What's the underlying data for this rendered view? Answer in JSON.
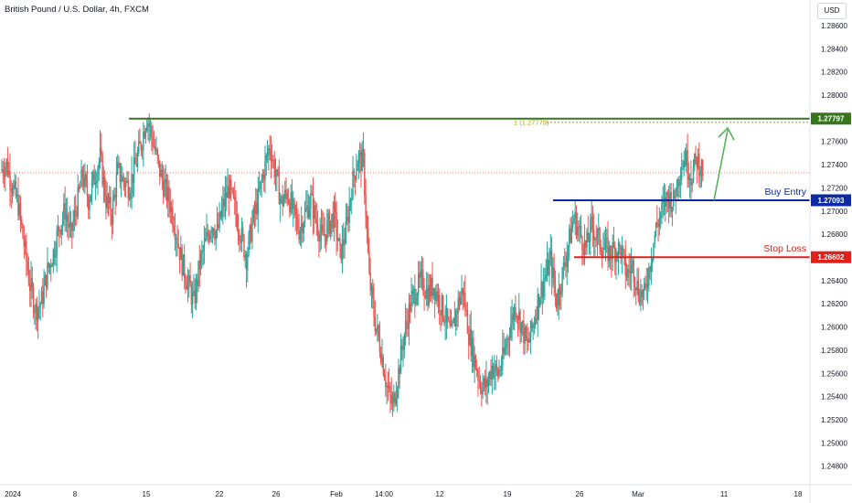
{
  "header": {
    "title": "British Pound / U.S. Dollar, 4h, FXCM",
    "currency": "USD"
  },
  "colors": {
    "up": "#26a69a",
    "down": "#ef5350",
    "target": "#38761d",
    "entry": "#0d2aa6",
    "stop": "#e0201b",
    "target_ghost": "#b8a000",
    "arrow": "#4caf50",
    "last_price": "#ef5350",
    "grid_text": "#131722"
  },
  "chart_data": {
    "type": "candlestick",
    "title": "British Pound / U.S. Dollar, 4h, FXCM",
    "ylim": [
      1.2464,
      1.2882
    ],
    "y_ticks": [
      "1.28600",
      "1.28400",
      "1.28200",
      "1.28000",
      "1.27800",
      "1.27600",
      "1.27400",
      "1.27200",
      "1.27000",
      "1.26800",
      "1.26600",
      "1.26400",
      "1.26200",
      "1.26000",
      "1.25800",
      "1.25600",
      "1.25400",
      "1.25200",
      "1.25000",
      "1.24800"
    ],
    "x_tick_labels": [
      "2024",
      "8",
      "15",
      "22",
      "26",
      "Feb",
      "14:00",
      "12",
      "19",
      "26",
      "Mar",
      "11",
      "18"
    ],
    "grid": false,
    "price_lines": [
      {
        "name": "target",
        "label": "",
        "value": 1.27797,
        "badge": "1.27797"
      },
      {
        "name": "entry",
        "label": "Buy Entry",
        "value": 1.27093,
        "badge": "1.27093"
      },
      {
        "name": "stop",
        "label": "Stop Loss",
        "value": 1.26602,
        "badge": "1.26602"
      }
    ],
    "ghost_label": "1 (1.27779)",
    "last_price": 1.2733,
    "series": [
      {
        "name": "GBPUSD",
        "close_path": [
          1.2735,
          1.2741,
          1.2722,
          1.2705,
          1.2671,
          1.2636,
          1.2615,
          1.2622,
          1.2648,
          1.2664,
          1.2686,
          1.2701,
          1.2679,
          1.2705,
          1.2731,
          1.271,
          1.2729,
          1.2746,
          1.271,
          1.2697,
          1.2734,
          1.2726,
          1.2721,
          1.2739,
          1.2758,
          1.2782,
          1.2761,
          1.2738,
          1.272,
          1.2706,
          1.2682,
          1.2655,
          1.2638,
          1.2621,
          1.2654,
          1.2672,
          1.269,
          1.2681,
          1.2704,
          1.272,
          1.2702,
          1.2681,
          1.266,
          1.2689,
          1.271,
          1.2735,
          1.2757,
          1.2731,
          1.2707,
          1.2716,
          1.2699,
          1.2684,
          1.2697,
          1.271,
          1.269,
          1.2676,
          1.2688,
          1.2697,
          1.2662,
          1.2682,
          1.2721,
          1.2745,
          1.2742,
          1.2641,
          1.2604,
          1.258,
          1.2549,
          1.2531,
          1.2561,
          1.2594,
          1.2619,
          1.2633,
          1.264,
          1.2629,
          1.2636,
          1.2622,
          1.2609,
          1.2591,
          1.2617,
          1.2633,
          1.2595,
          1.2572,
          1.2551,
          1.2548,
          1.2566,
          1.2559,
          1.2575,
          1.2599,
          1.2619,
          1.2602,
          1.2583,
          1.2602,
          1.2627,
          1.2642,
          1.2658,
          1.2621,
          1.2645,
          1.267,
          1.2695,
          1.2681,
          1.2667,
          1.2687,
          1.2677,
          1.2669,
          1.2664,
          1.2667,
          1.2666,
          1.2645,
          1.2653,
          1.2631,
          1.2627,
          1.2656,
          1.2685,
          1.27,
          1.2713,
          1.2708,
          1.2735,
          1.2747,
          1.273,
          1.2745,
          1.2735
        ]
      }
    ]
  }
}
